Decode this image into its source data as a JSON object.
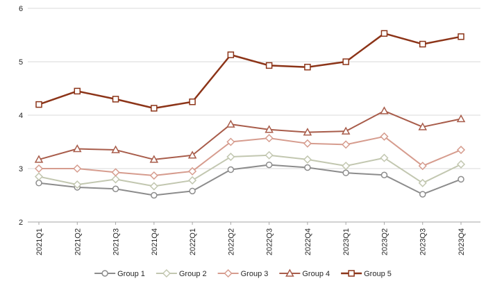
{
  "chart_data": {
    "type": "line",
    "title": "",
    "xlabel": "",
    "ylabel": "",
    "ylim": [
      2,
      6
    ],
    "yticks": [
      2,
      3,
      4,
      5,
      6
    ],
    "grid": true,
    "legend_position": "bottom",
    "categories": [
      "2021Q1",
      "2021Q2",
      "2021Q3",
      "2021Q4",
      "2022Q1",
      "2022Q2",
      "2022Q3",
      "2022Q4",
      "2023Q1",
      "2023Q2",
      "2023Q3",
      "2023Q4"
    ],
    "series": [
      {
        "name": "Group 1",
        "color": "#8c8c8c",
        "marker": "circle",
        "line_width": 2,
        "values": [
          2.73,
          2.65,
          2.62,
          2.5,
          2.58,
          2.98,
          3.07,
          3.02,
          2.92,
          2.88,
          2.52,
          2.8
        ]
      },
      {
        "name": "Group 2",
        "color": "#c2c7b0",
        "marker": "diamond",
        "line_width": 2,
        "values": [
          2.85,
          2.7,
          2.8,
          2.67,
          2.78,
          3.22,
          3.25,
          3.17,
          3.05,
          3.2,
          2.73,
          3.08
        ]
      },
      {
        "name": "Group 3",
        "color": "#d69c8e",
        "marker": "diamond",
        "line_width": 2,
        "values": [
          3.0,
          3.0,
          2.93,
          2.87,
          2.95,
          3.5,
          3.57,
          3.47,
          3.45,
          3.6,
          3.05,
          3.35
        ]
      },
      {
        "name": "Group 4",
        "color": "#a85c4a",
        "marker": "triangle",
        "line_width": 2,
        "values": [
          3.17,
          3.37,
          3.35,
          3.17,
          3.25,
          3.83,
          3.73,
          3.68,
          3.7,
          4.08,
          3.78,
          3.93
        ]
      },
      {
        "name": "Group 5",
        "color": "#8c3418",
        "marker": "square",
        "line_width": 2.5,
        "values": [
          4.2,
          4.45,
          4.3,
          4.13,
          4.25,
          5.13,
          4.93,
          4.9,
          5.0,
          5.53,
          5.33,
          5.47
        ]
      }
    ],
    "colors": {
      "gridline": "#d9d9d9",
      "axis_line": "#a6a6a6",
      "tick_label": "#262626",
      "legend_label": "#262626",
      "background": "#ffffff",
      "marker_fill": "#ffffff"
    }
  }
}
